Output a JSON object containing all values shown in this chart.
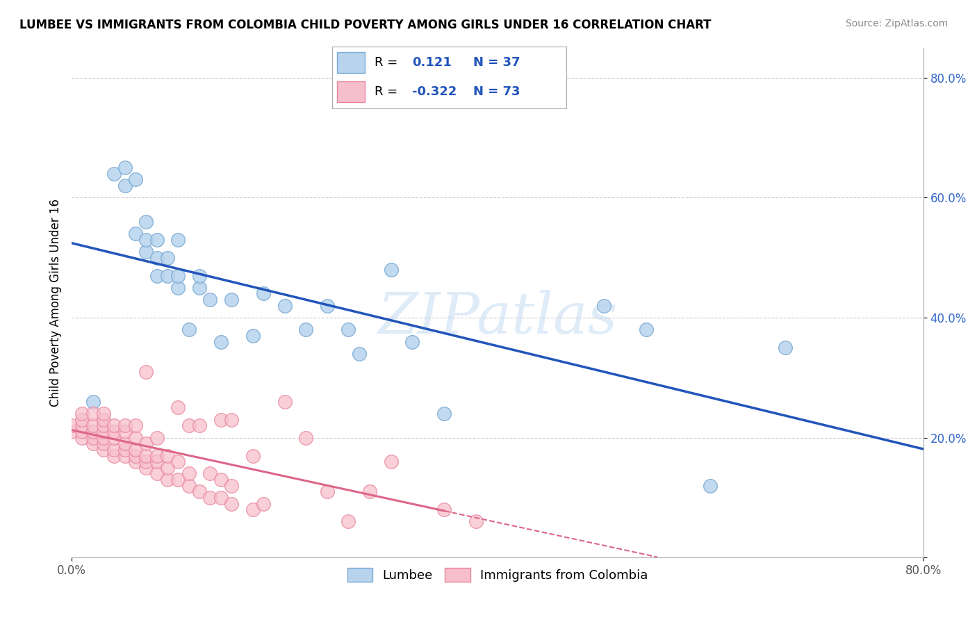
{
  "title": "LUMBEE VS IMMIGRANTS FROM COLOMBIA CHILD POVERTY AMONG GIRLS UNDER 16 CORRELATION CHART",
  "source": "Source: ZipAtlas.com",
  "ylabel": "Child Poverty Among Girls Under 16",
  "xlim": [
    0.0,
    0.8
  ],
  "ylim": [
    0.0,
    0.85
  ],
  "yticks": [
    0.0,
    0.2,
    0.4,
    0.6,
    0.8
  ],
  "xticks": [
    0.0,
    0.8
  ],
  "xtick_labels": [
    "0.0%",
    "80.0%"
  ],
  "ytick_labels": [
    "",
    "20.0%",
    "40.0%",
    "60.0%",
    "80.0%"
  ],
  "watermark": "ZIPatlas",
  "lumbee_color": "#b8d4ed",
  "lumbee_edge": "#7aaad4",
  "colombia_color": "#f7bfcc",
  "colombia_edge": "#e8849a",
  "lumbee_line_color": "#2255bb",
  "colombia_line_color": "#dd6688",
  "lumbee_R": "0.121",
  "lumbee_N": "37",
  "colombia_R": "-0.322",
  "colombia_N": "73",
  "R_color": "#2255bb",
  "N_color": "#2255bb",
  "lumbee_points_x": [
    0.02,
    0.04,
    0.05,
    0.05,
    0.06,
    0.06,
    0.07,
    0.07,
    0.07,
    0.08,
    0.08,
    0.08,
    0.09,
    0.09,
    0.1,
    0.1,
    0.1,
    0.11,
    0.12,
    0.12,
    0.13,
    0.14,
    0.15,
    0.17,
    0.18,
    0.2,
    0.22,
    0.24,
    0.26,
    0.27,
    0.3,
    0.32,
    0.35,
    0.5,
    0.54,
    0.6,
    0.67
  ],
  "lumbee_points_y": [
    0.26,
    0.64,
    0.65,
    0.62,
    0.54,
    0.63,
    0.51,
    0.53,
    0.56,
    0.47,
    0.5,
    0.53,
    0.47,
    0.5,
    0.45,
    0.47,
    0.53,
    0.38,
    0.45,
    0.47,
    0.43,
    0.36,
    0.43,
    0.37,
    0.44,
    0.42,
    0.38,
    0.42,
    0.38,
    0.34,
    0.48,
    0.36,
    0.24,
    0.42,
    0.38,
    0.12,
    0.35
  ],
  "colombia_points_x": [
    0.0,
    0.0,
    0.01,
    0.01,
    0.01,
    0.01,
    0.01,
    0.02,
    0.02,
    0.02,
    0.02,
    0.02,
    0.03,
    0.03,
    0.03,
    0.03,
    0.03,
    0.03,
    0.03,
    0.04,
    0.04,
    0.04,
    0.04,
    0.04,
    0.05,
    0.05,
    0.05,
    0.05,
    0.05,
    0.06,
    0.06,
    0.06,
    0.06,
    0.06,
    0.07,
    0.07,
    0.07,
    0.07,
    0.07,
    0.08,
    0.08,
    0.08,
    0.08,
    0.09,
    0.09,
    0.09,
    0.1,
    0.1,
    0.1,
    0.11,
    0.11,
    0.11,
    0.12,
    0.12,
    0.13,
    0.13,
    0.14,
    0.14,
    0.14,
    0.15,
    0.15,
    0.15,
    0.17,
    0.17,
    0.18,
    0.2,
    0.22,
    0.24,
    0.26,
    0.28,
    0.3,
    0.35,
    0.38
  ],
  "colombia_points_y": [
    0.21,
    0.22,
    0.2,
    0.21,
    0.22,
    0.23,
    0.24,
    0.19,
    0.2,
    0.21,
    0.22,
    0.24,
    0.18,
    0.19,
    0.2,
    0.21,
    0.22,
    0.23,
    0.24,
    0.17,
    0.18,
    0.2,
    0.21,
    0.22,
    0.17,
    0.18,
    0.19,
    0.21,
    0.22,
    0.16,
    0.17,
    0.18,
    0.2,
    0.22,
    0.15,
    0.16,
    0.17,
    0.19,
    0.31,
    0.14,
    0.16,
    0.17,
    0.2,
    0.13,
    0.15,
    0.17,
    0.13,
    0.16,
    0.25,
    0.12,
    0.14,
    0.22,
    0.11,
    0.22,
    0.1,
    0.14,
    0.1,
    0.13,
    0.23,
    0.09,
    0.12,
    0.23,
    0.08,
    0.17,
    0.09,
    0.26,
    0.2,
    0.11,
    0.06,
    0.11,
    0.16,
    0.08,
    0.06
  ]
}
